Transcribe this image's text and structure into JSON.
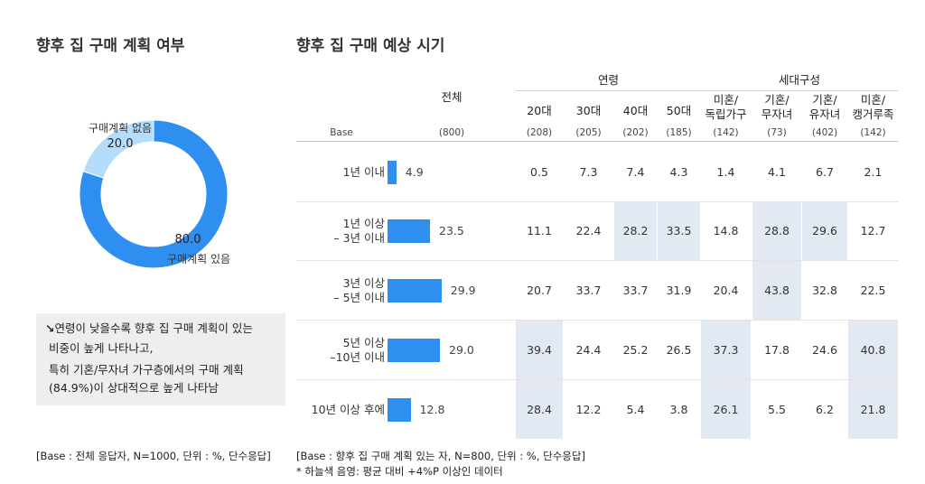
{
  "left": {
    "title": "향후 집 구매 계획 여부",
    "donut": {
      "segments": [
        {
          "label": "구매계획 있음",
          "value": 80.0,
          "display": "80.0",
          "color": "#2E8FF0"
        },
        {
          "label": "구매계획 없음",
          "value": 20.0,
          "display": "20.0",
          "color": "#B3DDFB"
        }
      ]
    },
    "note": {
      "arrow": "↘",
      "lines": [
        "연령이 낮을수록 향후 집 구매 계획이 있는",
        "비중이 높게 나타나고,",
        "특히 기혼/무자녀 가구층에서의 구매 계획",
        "(84.9%)이 상대적으로 높게 나타남"
      ]
    },
    "footnote": "[Base : 전체 응답자, N=1000, 단위 : %, 단수응답]"
  },
  "right": {
    "title": "향후 집 구매 예상 시기",
    "header": {
      "total_label": "전체",
      "group_age": "연령",
      "group_household": "세대구성",
      "base_label": "Base",
      "total_base": "(800)"
    },
    "columns": [
      {
        "l1": "20대",
        "l2": "",
        "base": "(208)"
      },
      {
        "l1": "30대",
        "l2": "",
        "base": "(205)"
      },
      {
        "l1": "40대",
        "l2": "",
        "base": "(202)"
      },
      {
        "l1": "50대",
        "l2": "",
        "base": "(185)"
      },
      {
        "l1": "미혼/",
        "l2": "독립가구",
        "base": "(142)"
      },
      {
        "l1": "기혼/",
        "l2": "무자녀",
        "base": "(73)"
      },
      {
        "l1": "기혼/",
        "l2": "유자녀",
        "base": "(402)"
      },
      {
        "l1": "미혼/",
        "l2": "캥거루족",
        "base": "(142)"
      }
    ],
    "rows": [
      {
        "l1": "1년 이내",
        "l2": "",
        "total": 4.9,
        "total_display": "4.9",
        "values": [
          "0.5",
          "7.3",
          "7.4",
          "4.3",
          "1.4",
          "4.1",
          "6.7",
          "2.1"
        ],
        "highlight": [
          false,
          false,
          false,
          false,
          false,
          false,
          false,
          false
        ]
      },
      {
        "l1": "1년 이상",
        "l2": "– 3년 이내",
        "total": 23.5,
        "total_display": "23.5",
        "values": [
          "11.1",
          "22.4",
          "28.2",
          "33.5",
          "14.8",
          "28.8",
          "29.6",
          "12.7"
        ],
        "highlight": [
          false,
          false,
          true,
          true,
          false,
          true,
          true,
          false
        ]
      },
      {
        "l1": "3년 이상",
        "l2": "– 5년 이내",
        "total": 29.9,
        "total_display": "29.9",
        "values": [
          "20.7",
          "33.7",
          "33.7",
          "31.9",
          "20.4",
          "43.8",
          "32.8",
          "22.5"
        ],
        "highlight": [
          false,
          false,
          false,
          false,
          false,
          true,
          false,
          false
        ]
      },
      {
        "l1": "5년 이상",
        "l2": "–10년 이내",
        "total": 29.0,
        "total_display": "29.0",
        "values": [
          "39.4",
          "24.4",
          "25.2",
          "26.5",
          "37.3",
          "17.8",
          "24.6",
          "40.8"
        ],
        "highlight": [
          true,
          false,
          false,
          false,
          true,
          false,
          false,
          true
        ]
      },
      {
        "l1": "10년 이상 후에",
        "l2": "",
        "total": 12.8,
        "total_display": "12.8",
        "values": [
          "28.4",
          "12.2",
          "5.4",
          "3.8",
          "26.1",
          "5.5",
          "6.2",
          "21.8"
        ],
        "highlight": [
          true,
          false,
          false,
          false,
          true,
          false,
          false,
          true
        ]
      }
    ],
    "bar_color": "#2E8FF0",
    "highlight_color": "#E2E9F3",
    "footnote1": "[Base : 향후 집 구매 계획 있는 자, N=800, 단위 : %, 단수응답]",
    "footnote2": "* 하늘색 음영: 평균 대비 +4%P 이상인 데이터"
  },
  "chart_data": [
    {
      "type": "pie",
      "title": "향후 집 구매 계획 여부",
      "categories": [
        "구매계획 있음",
        "구매계획 없음"
      ],
      "values": [
        80.0,
        20.0
      ]
    },
    {
      "type": "bar",
      "title": "향후 집 구매 예상 시기",
      "categories": [
        "1년 이내",
        "1년 이상 – 3년 이내",
        "3년 이상 – 5년 이내",
        "5년 이상 –10년 이내",
        "10년 이상 후에"
      ],
      "values": [
        4.9,
        23.5,
        29.9,
        29.0,
        12.8
      ],
      "series": [
        {
          "name": "전체",
          "values": [
            4.9,
            23.5,
            29.9,
            29.0,
            12.8
          ]
        },
        {
          "name": "20대",
          "values": [
            0.5,
            11.1,
            20.7,
            39.4,
            28.4
          ]
        },
        {
          "name": "30대",
          "values": [
            7.3,
            22.4,
            33.7,
            24.4,
            12.2
          ]
        },
        {
          "name": "40대",
          "values": [
            7.4,
            28.2,
            33.7,
            25.2,
            5.4
          ]
        },
        {
          "name": "50대",
          "values": [
            4.3,
            33.5,
            31.9,
            26.5,
            3.8
          ]
        },
        {
          "name": "미혼/독립가구",
          "values": [
            1.4,
            14.8,
            20.4,
            37.3,
            26.1
          ]
        },
        {
          "name": "기혼/무자녀",
          "values": [
            4.1,
            28.8,
            43.8,
            17.8,
            5.5
          ]
        },
        {
          "name": "기혼/유자녀",
          "values": [
            6.7,
            29.6,
            32.8,
            24.6,
            6.2
          ]
        },
        {
          "name": "미혼/캥거루족",
          "values": [
            2.1,
            12.7,
            22.5,
            40.8,
            21.8
          ]
        }
      ]
    }
  ]
}
